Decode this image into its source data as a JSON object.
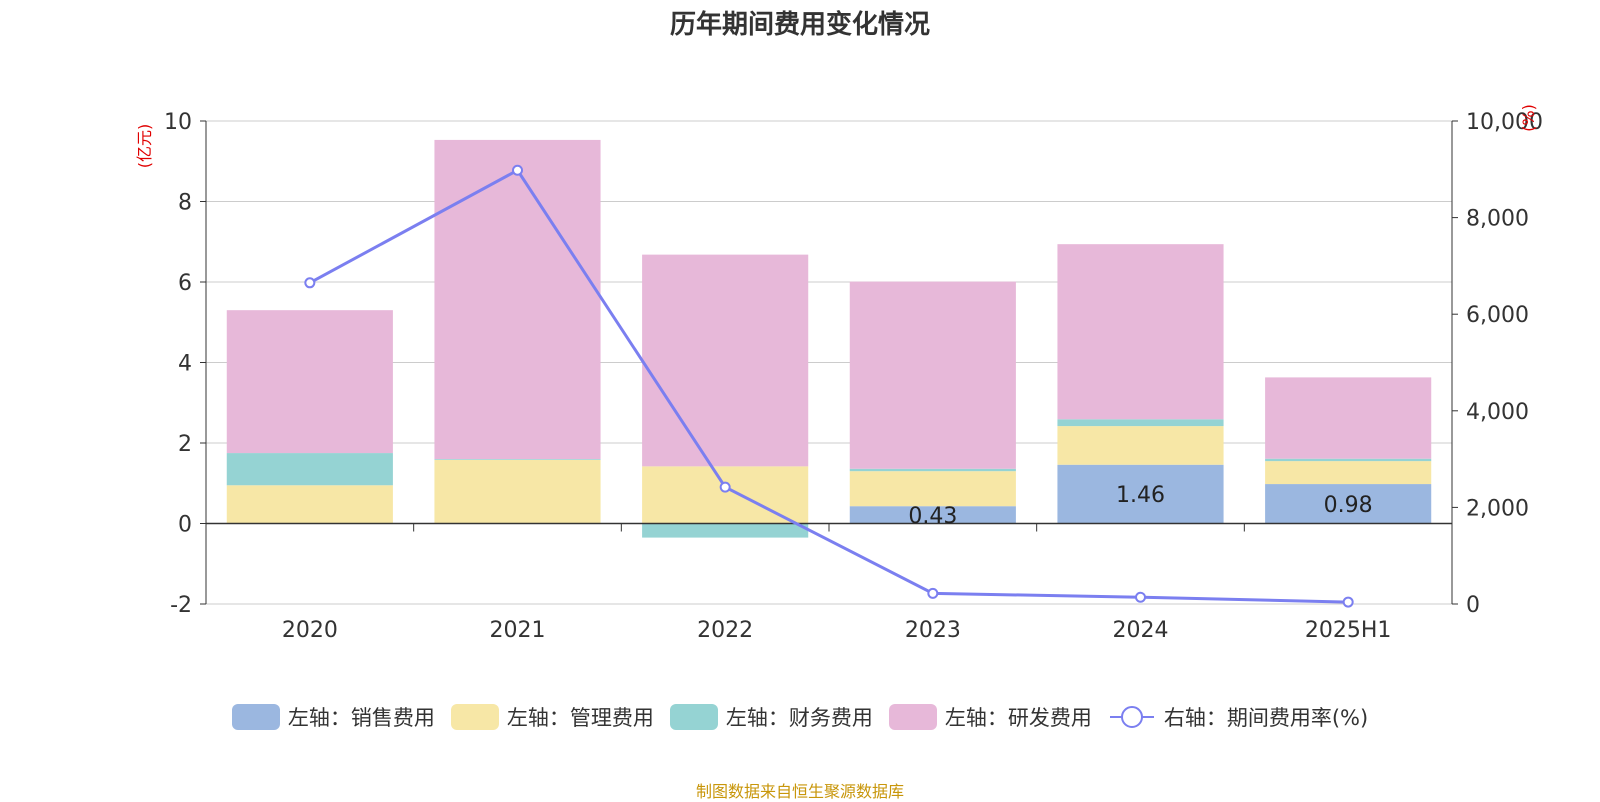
{
  "chart_data": {
    "type": "bar",
    "title": "历年期间费用变化情况",
    "categories": [
      "2020",
      "2021",
      "2022",
      "2023",
      "2024",
      "2025H1"
    ],
    "stacked": true,
    "left_axis": {
      "unit_label": "(亿元)",
      "ylim": [
        -2,
        10
      ],
      "ticks": [
        "-2",
        "0",
        "2",
        "4",
        "6",
        "8",
        "10"
      ]
    },
    "right_axis": {
      "unit_label": "(%)",
      "ylim": [
        0,
        10000
      ],
      "ticks": [
        "0",
        "2,000",
        "4,000",
        "6,000",
        "8,000",
        "10,000"
      ]
    },
    "series": [
      {
        "name": "左轴：销售费用",
        "type": "bar",
        "color": "#9bb7e0",
        "values": [
          0,
          0,
          0,
          0.43,
          1.46,
          0.98
        ],
        "data_labels": [
          "",
          "",
          "",
          "0.43",
          "1.46",
          "0.98"
        ]
      },
      {
        "name": "左轴：管理费用",
        "type": "bar",
        "color": "#f7e7a6",
        "values": [
          0.95,
          1.58,
          1.42,
          0.87,
          0.96,
          0.57
        ]
      },
      {
        "name": "左轴：财务费用",
        "type": "bar",
        "color": "#95d3d3",
        "values": [
          0.8,
          0.02,
          -0.35,
          0.06,
          0.17,
          0.06
        ]
      },
      {
        "name": "左轴：研发费用",
        "type": "bar",
        "color": "#e7b8d9",
        "values": [
          3.55,
          7.93,
          5.26,
          4.65,
          4.35,
          2.02
        ]
      },
      {
        "name": "右轴：期间费用率(%)",
        "type": "line",
        "axis": "right",
        "color": "#7b7ff0",
        "values": [
          6650,
          8980,
          2420,
          220,
          140,
          40
        ]
      }
    ],
    "grid": true,
    "legend": "bottom"
  },
  "footer": {
    "source": "制图数据来自恒生聚源数据库"
  }
}
